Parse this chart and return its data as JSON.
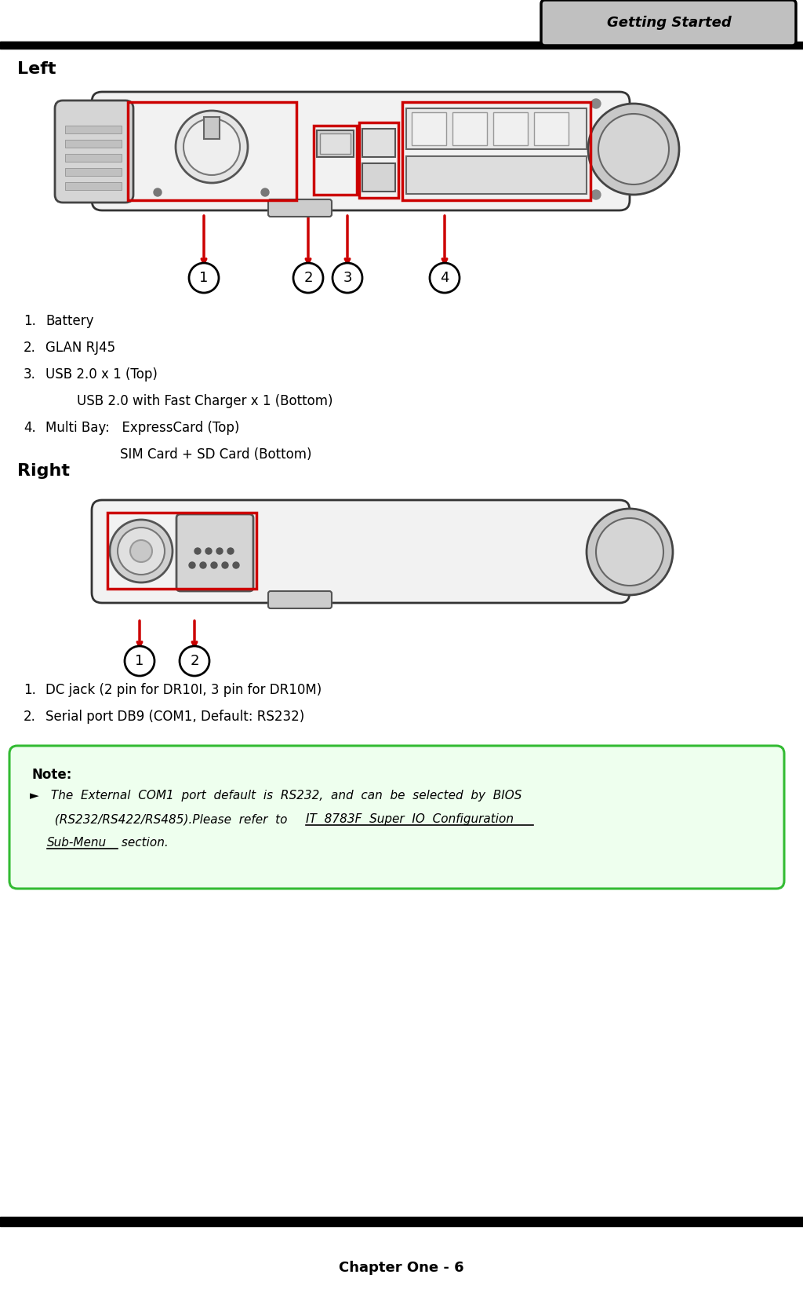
{
  "page_title": "Getting Started",
  "footer_text": "Chapter One - 6",
  "left_label": "Left",
  "right_label": "Right",
  "left_items": [
    {
      "num": "1.",
      "text": "Battery",
      "indent": 0
    },
    {
      "num": "2.",
      "text": "GLAN RJ45",
      "indent": 0
    },
    {
      "num": "3.",
      "text": "USB 2.0 x 1 (Top)",
      "indent": 0
    },
    {
      "num": "",
      "text": "USB 2.0 with Fast Charger x 1 (Bottom)",
      "indent": 40
    },
    {
      "num": "4.",
      "text": "Multi Bay:   ExpressCard (Top)",
      "indent": 0
    },
    {
      "num": "",
      "text": "SIM Card + SD Card (Bottom)",
      "indent": 95
    }
  ],
  "right_items": [
    {
      "num": "1.",
      "text": "DC jack (2 pin for DR10I, 3 pin for DR10M)"
    },
    {
      "num": "2.",
      "text": "Serial port DB9 (COM1, Default: RS232)"
    }
  ],
  "note_label": "Note:",
  "note_bullet": "►",
  "note_line1": " The  External  COM1  port  default  is  RS232,  and  can  be  selected  by  BIOS",
  "note_line2_pre": "  (RS232/RS422/RS485).Please  refer  to  ",
  "note_line2_link": "IT  8783F  Super  IO  Configuration",
  "note_line3_link": "Sub-Menu",
  "note_line3_post": " section.",
  "bg_color": "#ffffff",
  "header_bg": "#c0c0c0",
  "note_bg": "#eeffee",
  "note_border": "#33bb33",
  "red_color": "#cc0000",
  "black": "#000000"
}
